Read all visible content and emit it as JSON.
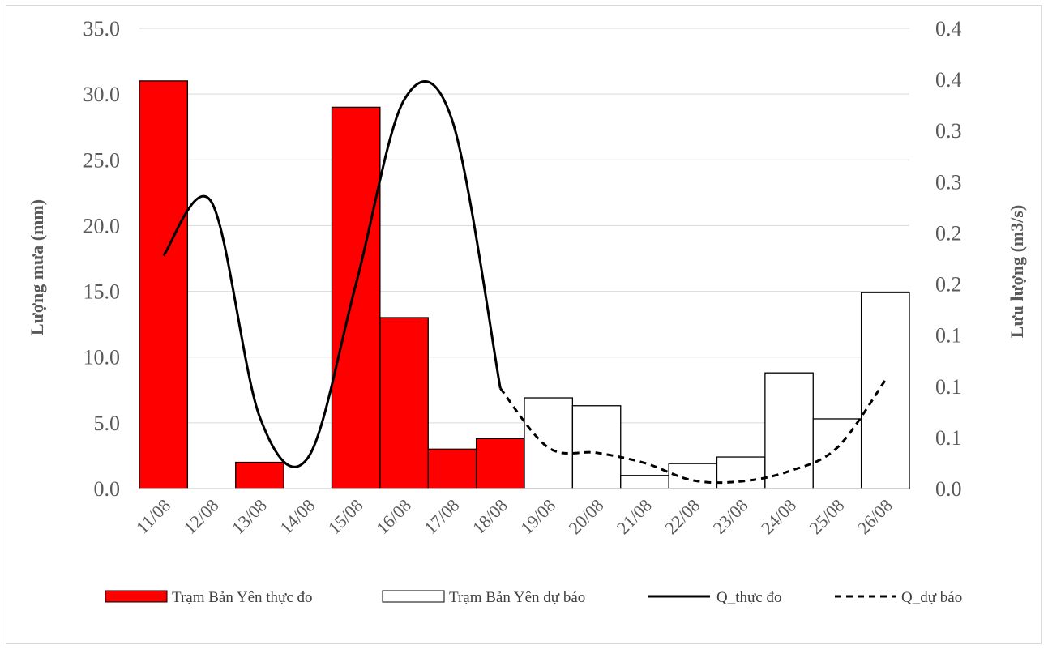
{
  "chart_data": {
    "type": "bar",
    "title": "",
    "categories": [
      "11/08",
      "12/08",
      "13/08",
      "14/08",
      "15/08",
      "16/08",
      "17/08",
      "18/08",
      "19/08",
      "20/08",
      "21/08",
      "22/08",
      "23/08",
      "24/08",
      "25/08",
      "26/08"
    ],
    "ylabel": "Lượng mưa (mm)",
    "y2label": "Lưu lượng (m3/s)",
    "ylim": [
      0,
      35
    ],
    "y2lim": [
      0,
      0.45
    ],
    "y_ticks": [
      "0.0",
      "5.0",
      "10.0",
      "15.0",
      "20.0",
      "25.0",
      "30.0",
      "35.0"
    ],
    "y2_ticks": [
      "0.0",
      "0.1",
      "0.1",
      "0.1",
      "0.2",
      "0.2",
      "0.3",
      "0.3",
      "0.4",
      "0.4"
    ],
    "grid": true,
    "legend_position": "bottom",
    "series": [
      {
        "name": "Trạm Bản Yên thực đo",
        "type": "bar",
        "axis": "left",
        "color": "#ff0000",
        "values": [
          31,
          null,
          2,
          null,
          29,
          13,
          3,
          3.8,
          null,
          null,
          null,
          null,
          null,
          null,
          null,
          null
        ]
      },
      {
        "name": "Trạm Bản Yên dự báo",
        "type": "bar",
        "axis": "left",
        "color": "#ffffff",
        "values": [
          null,
          null,
          null,
          null,
          null,
          null,
          null,
          null,
          6.9,
          6.3,
          1.0,
          1.9,
          2.4,
          8.8,
          5.3,
          14.9
        ]
      },
      {
        "name": "Q_thực đo",
        "type": "line",
        "axis": "right",
        "style": "solid",
        "color": "#000000",
        "values": [
          0.228,
          0.28,
          0.07,
          0.03,
          0.2,
          0.38,
          0.36,
          0.098,
          null,
          null,
          null,
          null,
          null,
          null,
          null,
          null
        ]
      },
      {
        "name": "Q_dự báo",
        "type": "line",
        "axis": "right",
        "style": "dashed",
        "color": "#000000",
        "values": [
          null,
          null,
          null,
          null,
          null,
          null,
          null,
          0.098,
          0.04,
          0.035,
          0.025,
          0.008,
          0.007,
          0.017,
          0.04,
          0.106
        ]
      }
    ]
  }
}
